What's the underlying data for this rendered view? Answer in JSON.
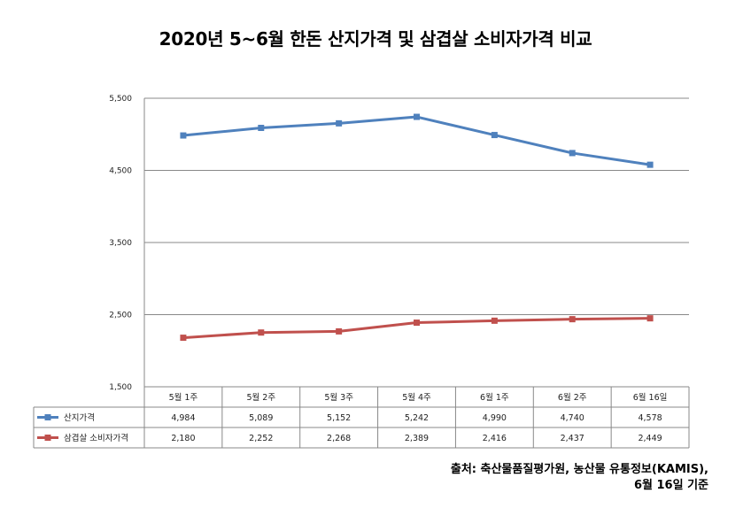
{
  "chart_data": {
    "type": "line",
    "title": "2020년 5~6월 한돈 산지가격 및 삼겹살 소비자가격 비교",
    "categories": [
      "5월 1주",
      "5월 2주",
      "5월 3주",
      "5월 4주",
      "6월 1주",
      "6월 2주",
      "6월 16일"
    ],
    "yticks": [
      "5,500",
      "4,500",
      "3,500",
      "2,500",
      "1,500"
    ],
    "ylim": [
      1500,
      5500
    ],
    "grid": true,
    "legend": "data-table",
    "series": [
      {
        "name": "산지가격",
        "color": "#4F81BD",
        "values": [
          4984,
          5089,
          5152,
          5242,
          4990,
          4740,
          4578
        ],
        "labels": [
          "4,984",
          "5,089",
          "5,152",
          "5,242",
          "4,990",
          "4,740",
          "4,578"
        ]
      },
      {
        "name": "삼겹살 소비자가격",
        "color": "#C0504D",
        "values": [
          2180,
          2252,
          2268,
          2389,
          2416,
          2437,
          2449
        ],
        "labels": [
          "2,180",
          "2,252",
          "2,268",
          "2,389",
          "2,416",
          "2,437",
          "2,449"
        ]
      }
    ]
  },
  "source": {
    "line1": "출처: 축산물품질평가원, 농산물 유통정보(KAMIS),",
    "line2": "6월 16일 기준"
  }
}
